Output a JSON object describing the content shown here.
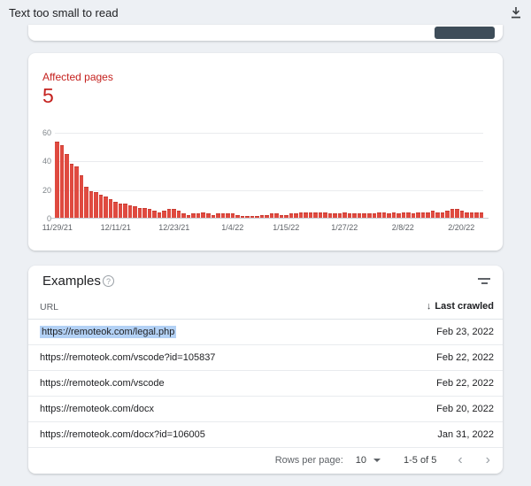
{
  "page": {
    "title": "Text too small to read"
  },
  "colors": {
    "page_bg": "#edf0f4",
    "error_red": "#c5221f",
    "bar_red": "#df4a40",
    "dark_button": "#3e4d59",
    "selection_blue": "#b3d1f5"
  },
  "icons": {
    "download_icon": "arrow-down-to-bar",
    "help_icon": "?",
    "filter_icon": "two-bars-filter",
    "sort_desc_icon": "↓",
    "dropdown_caret_icon": "▾",
    "chevron_left_icon": "‹",
    "chevron_right_icon": "›"
  },
  "summary": {
    "label": "Affected pages",
    "count": "5"
  },
  "chart_data": {
    "type": "bar",
    "title": "Affected pages",
    "total_affected_pages": 5,
    "xlabel": "date (daily bars)",
    "ylabel": "",
    "ylim": [
      0,
      60
    ],
    "y_ticks": [
      0,
      20,
      40,
      60
    ],
    "grid": true,
    "legend": "none",
    "bar_color": "#df4a40",
    "x_start": "11/29/21",
    "x_end": "2/24/22",
    "x_tick_labels": [
      {
        "index": 0,
        "label": "11/29/21"
      },
      {
        "index": 12,
        "label": "12/11/21"
      },
      {
        "index": 24,
        "label": "12/23/21"
      },
      {
        "index": 36,
        "label": "1/4/22"
      },
      {
        "index": 47,
        "label": "1/15/22"
      },
      {
        "index": 59,
        "label": "1/27/22"
      },
      {
        "index": 71,
        "label": "2/8/22"
      },
      {
        "index": 83,
        "label": "2/20/22"
      }
    ],
    "values": [
      54,
      51,
      45,
      38,
      36,
      30,
      22,
      19,
      18,
      16,
      15,
      13,
      11,
      10,
      10,
      9,
      8,
      7,
      7,
      6,
      5,
      4,
      5,
      6,
      6,
      5,
      3,
      2,
      3,
      3,
      4,
      3,
      2,
      3,
      3,
      3,
      3,
      2,
      1,
      1,
      1,
      1,
      2,
      2,
      3,
      3,
      2,
      2,
      3,
      3,
      4,
      4,
      4,
      4,
      4,
      4,
      3,
      3,
      3,
      4,
      3,
      3,
      3,
      3,
      3,
      3,
      4,
      4,
      3,
      4,
      3,
      4,
      4,
      3,
      4,
      4,
      4,
      5,
      4,
      4,
      5,
      6,
      6,
      5,
      4,
      4,
      4,
      4
    ]
  },
  "examples": {
    "title": "Examples",
    "columns": {
      "url": "URL",
      "last_crawled": "Last crawled"
    },
    "rows": [
      {
        "url": "https://remoteok.com/legal.php",
        "last_crawled": "Feb 23, 2022",
        "selected": true
      },
      {
        "url": "https://remoteok.com/vscode?id=105837",
        "last_crawled": "Feb 22, 2022",
        "selected": false
      },
      {
        "url": "https://remoteok.com/vscode",
        "last_crawled": "Feb 22, 2022",
        "selected": false
      },
      {
        "url": "https://remoteok.com/docx",
        "last_crawled": "Feb 20, 2022",
        "selected": false
      },
      {
        "url": "https://remoteok.com/docx?id=106005",
        "last_crawled": "Jan 31, 2022",
        "selected": false
      }
    ],
    "pagination": {
      "rows_per_page_label": "Rows per page:",
      "rows_per_page_value": "10",
      "range_label": "1-5 of 5"
    }
  }
}
